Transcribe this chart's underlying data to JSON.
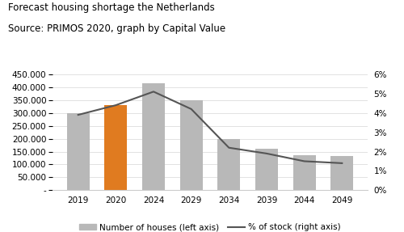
{
  "title_line1": "Forecast housing shortage the Netherlands",
  "title_line2": "Source: PRIMOS 2020, graph by Capital Value",
  "categories": [
    "2019",
    "2020",
    "2024",
    "2029",
    "2034",
    "2039",
    "2044",
    "2049"
  ],
  "bar_values": [
    300000,
    330000,
    415000,
    350000,
    200000,
    162000,
    137000,
    132000
  ],
  "bar_colors": [
    "#b8b8b8",
    "#e07b20",
    "#b8b8b8",
    "#b8b8b8",
    "#b8b8b8",
    "#b8b8b8",
    "#b8b8b8",
    "#b8b8b8"
  ],
  "line_values": [
    3.9,
    4.4,
    5.1,
    4.2,
    2.2,
    1.9,
    1.5,
    1.4
  ],
  "line_color": "#555555",
  "ylim_left": [
    0,
    450000
  ],
  "ylim_right": [
    0,
    6
  ],
  "yticks_left": [
    0,
    50000,
    100000,
    150000,
    200000,
    250000,
    300000,
    350000,
    400000,
    450000
  ],
  "yticks_right": [
    0,
    1,
    2,
    3,
    4,
    5,
    6
  ],
  "background_color": "#ffffff",
  "legend_bar_label": "Number of houses (left axis)",
  "legend_line_label": "% of stock (right axis)",
  "title_fontsize": 8.5,
  "tick_fontsize": 7.5,
  "legend_fontsize": 7.5
}
